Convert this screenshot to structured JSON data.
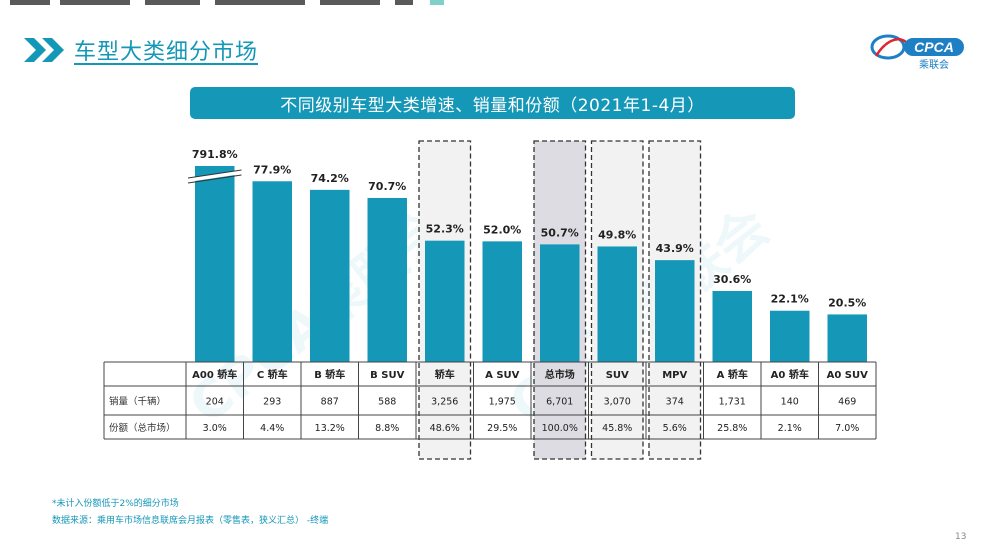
{
  "section_title": "车型大类细分市场",
  "logo": {
    "text": "CPCA",
    "sub": "乘联会"
  },
  "colors": {
    "accent": "#1597b8",
    "bar": "#1597b8",
    "highlight_box": "#f2f2f2",
    "highlight_box_dark": "#dcdce2"
  },
  "chart_data": {
    "type": "bar",
    "title": "不同级别车型大类增速、销量和份额（2021年1-4月）",
    "categories": [
      "A00 轿车",
      "C 轿车",
      "B 轿车",
      "B SUV",
      "轿车",
      "A SUV",
      "总市场",
      "SUV",
      "MPV",
      "A 轿车",
      "A0 轿车",
      "A0 SUV"
    ],
    "values": [
      791.8,
      77.9,
      74.2,
      70.7,
      52.3,
      52.0,
      50.7,
      49.8,
      43.9,
      30.6,
      22.1,
      20.5
    ],
    "value_labels": [
      "791.8%",
      "77.9%",
      "74.2%",
      "70.7%",
      "52.3%",
      "52.0%",
      "50.7%",
      "49.8%",
      "43.9%",
      "30.6%",
      "22.1%",
      "20.5%"
    ],
    "axis_break_on_first_bar": true,
    "highlighted_categories": [
      "轿车",
      "总市场",
      "SUV",
      "MPV"
    ],
    "table": {
      "rows": [
        {
          "label": "销量（千辆）",
          "values": [
            "204",
            "293",
            "887",
            "588",
            "3,256",
            "1,975",
            "6,701",
            "3,070",
            "374",
            "1,731",
            "140",
            "469"
          ]
        },
        {
          "label": "份额（总市场）",
          "values": [
            "3.0%",
            "4.4%",
            "13.2%",
            "8.8%",
            "48.6%",
            "29.5%",
            "100.0%",
            "45.8%",
            "5.6%",
            "25.8%",
            "2.1%",
            "7.0%"
          ]
        }
      ]
    },
    "watermark": "CPCA乘联会"
  },
  "notes": [
    "*未计入份额低于2%的细分市场",
    "数据来源：乘用车市场信息联席会月报表（零售表，狭义汇总） -终端"
  ],
  "page_number": "13"
}
